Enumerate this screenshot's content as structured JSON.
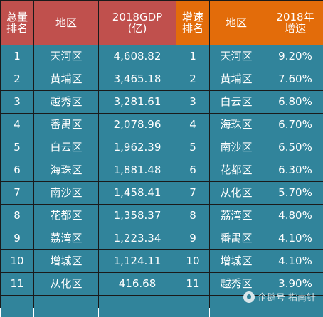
{
  "header": {
    "col1": [
      "总量",
      "排名"
    ],
    "col2": "地区",
    "col3": [
      "2018GDP",
      "(亿)"
    ],
    "col4": [
      "增速",
      "排名"
    ],
    "col5": "地区",
    "col6": [
      "2018年",
      "增速"
    ]
  },
  "rows": [
    {
      "rank": "1",
      "district": "天河区",
      "gdp": "4,608.82",
      "growth_rank": "1",
      "growth_district": "天河区",
      "growth": "9.20%"
    },
    {
      "rank": "2",
      "district": "黄埔区",
      "gdp": "3,465.18",
      "growth_rank": "2",
      "growth_district": "黄埔区",
      "growth": "7.60%"
    },
    {
      "rank": "3",
      "district": "越秀区",
      "gdp": "3,281.61",
      "growth_rank": "3",
      "growth_district": "白云区",
      "growth": "6.80%"
    },
    {
      "rank": "4",
      "district": "番禺区",
      "gdp": "2,078.96",
      "growth_rank": "4",
      "growth_district": "海珠区",
      "growth": "6.70%"
    },
    {
      "rank": "5",
      "district": "白云区",
      "gdp": "1,962.39",
      "growth_rank": "5",
      "growth_district": "南沙区",
      "growth": "6.50%"
    },
    {
      "rank": "6",
      "district": "海珠区",
      "gdp": "1,881.48",
      "growth_rank": "6",
      "growth_district": "花都区",
      "growth": "6.30%"
    },
    {
      "rank": "7",
      "district": "南沙区",
      "gdp": "1,458.41",
      "growth_rank": "7",
      "growth_district": "从化区",
      "growth": "5.70%"
    },
    {
      "rank": "8",
      "district": "花都区",
      "gdp": "1,358.37",
      "growth_rank": "8",
      "growth_district": "荔湾区",
      "growth": "4.80%"
    },
    {
      "rank": "9",
      "district": "荔湾区",
      "gdp": "1,223.34",
      "growth_rank": "9",
      "growth_district": "番禺区",
      "growth": "4.10%"
    },
    {
      "rank": "10",
      "district": "增城区",
      "gdp": "1,124.11",
      "growth_rank": "10",
      "growth_district": "增城区",
      "growth": "4.10%"
    },
    {
      "rank": "11",
      "district": "从化区",
      "gdp": "416.68",
      "growth_rank": "11",
      "growth_district": "越秀区",
      "growth": "3.90%"
    }
  ],
  "watermark": "企鹅号 指南针",
  "colors": {
    "header_left": "#c0504d",
    "header_right": "#e36c0a",
    "body": "#31849b",
    "grid": "#1a1a1a"
  }
}
